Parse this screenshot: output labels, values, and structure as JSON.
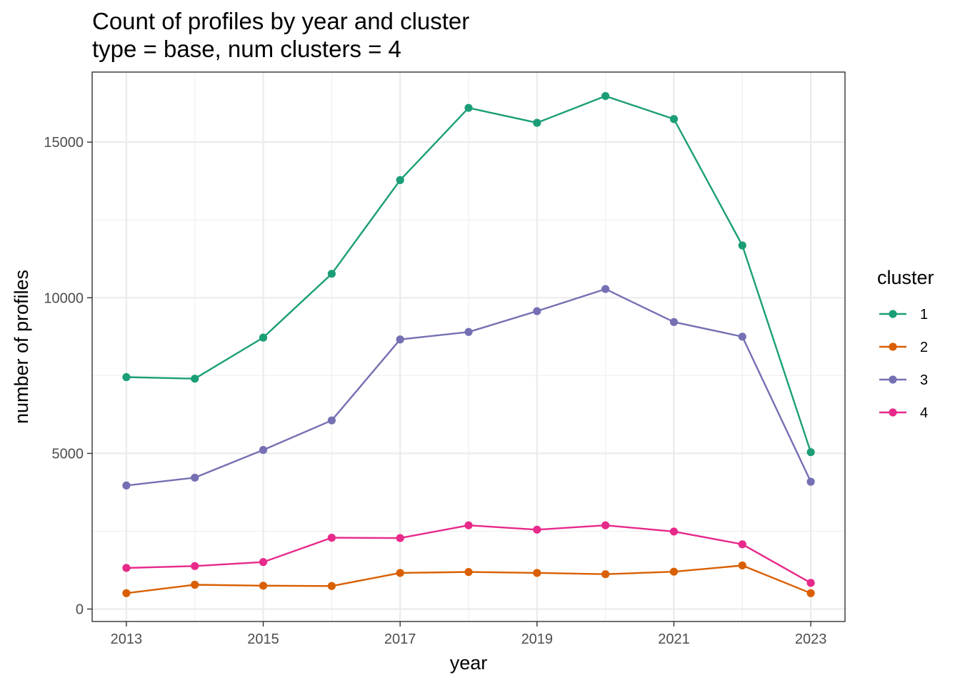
{
  "chart_data": {
    "type": "line",
    "title": "Count of profiles by year and cluster",
    "subtitle": "type = base, num clusters = 4",
    "xlabel": "year",
    "ylabel": "number of profiles",
    "x": [
      2013,
      2014,
      2015,
      2016,
      2017,
      2018,
      2019,
      2020,
      2021,
      2022,
      2023
    ],
    "x_ticks": [
      2013,
      2015,
      2017,
      2019,
      2021,
      2023
    ],
    "y_ticks": [
      0,
      5000,
      10000,
      15000
    ],
    "xlim": [
      2012.5,
      2023.5
    ],
    "ylim": [
      -400,
      17250
    ],
    "grid": true,
    "legend": {
      "title": "cluster",
      "position": "right"
    },
    "series": [
      {
        "name": "1",
        "color": "#1B9E77",
        "values": [
          7450,
          7400,
          8720,
          10770,
          13780,
          16100,
          15620,
          16480,
          15740,
          11680,
          5040
        ]
      },
      {
        "name": "2",
        "color": "#D95F02",
        "values": [
          510,
          780,
          750,
          740,
          1160,
          1190,
          1160,
          1120,
          1200,
          1400,
          510
        ]
      },
      {
        "name": "3",
        "color": "#7570B3",
        "values": [
          3970,
          4220,
          5110,
          6060,
          8660,
          8900,
          9570,
          10280,
          9220,
          8750,
          4090
        ]
      },
      {
        "name": "4",
        "color": "#E7298A",
        "values": [
          1320,
          1380,
          1510,
          2290,
          2280,
          2690,
          2550,
          2690,
          2490,
          2080,
          840
        ]
      }
    ]
  }
}
